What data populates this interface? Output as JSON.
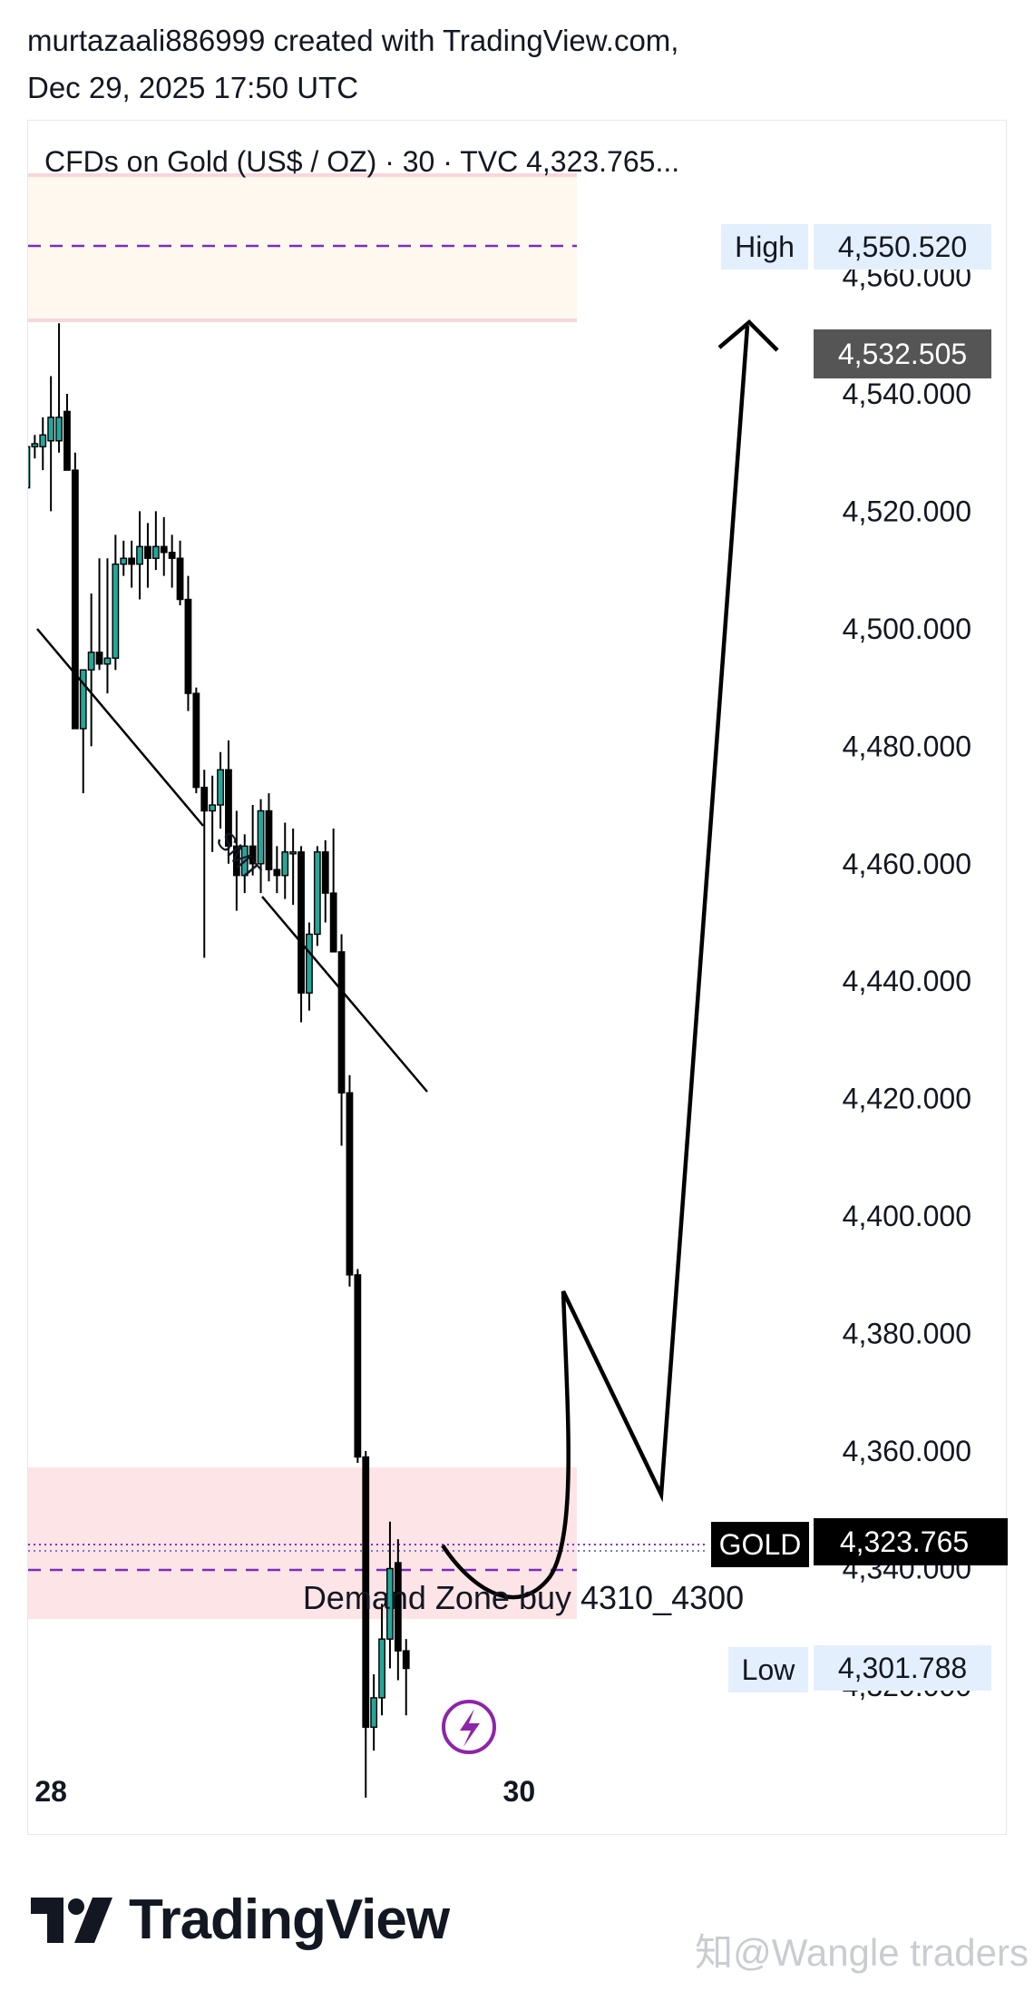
{
  "header": {
    "line1": "murtazaali886999 created with TradingView.com,",
    "line2": "Dec 29, 2025 17:50 UTC"
  },
  "symbol": {
    "legend": "CFDs on Gold (US$ / OZ) · 30 · TVC  4,323.765..."
  },
  "badges": {
    "high_label": "High",
    "high_value": "4,550.520",
    "level_value": "4,532.505",
    "gold_label": "GOLD",
    "gold_value": "4,323.765",
    "low_label": "Low",
    "low_value": "4,301.788"
  },
  "annotations": {
    "smt": "SMT",
    "demand_zone": "Demand Zone buy 4310_4300"
  },
  "footer": {
    "logo_text": "TradingView",
    "watermark": "知@Wangle traders"
  },
  "colors": {
    "bull": "#26a69a",
    "bear": "#000000",
    "dashed_line": "#7b2cbf",
    "supply_zone": "#fff8ee",
    "demand_zone": "#fde4e6"
  },
  "chart_data": {
    "type": "candlestick",
    "interval": "30",
    "y_ticks": [
      "4,560.000",
      "4,540.000",
      "4,520.000",
      "4,500.000",
      "4,480.000",
      "4,460.000",
      "4,440.000",
      "4,420.000",
      "4,400.000",
      "4,380.000",
      "4,360.000",
      "4,340.000",
      "4,320.000"
    ],
    "y_tick_values": [
      4560,
      4540,
      4520,
      4500,
      4480,
      4460,
      4440,
      4420,
      4400,
      4380,
      4360,
      4340,
      4320
    ],
    "ylim": [
      4294.5,
      4586.5
    ],
    "x_ticks": [
      {
        "label": "28",
        "index": 3
      },
      {
        "label": "30",
        "index": 61
      }
    ],
    "xlim": [
      0,
      86
    ],
    "candles": [
      {
        "o": 4524,
        "h": 4532,
        "l": 4522,
        "c": 4531
      },
      {
        "o": 4531,
        "h": 4533,
        "l": 4529,
        "c": 4531.5
      },
      {
        "o": 4531,
        "h": 4536,
        "l": 4527,
        "c": 4533
      },
      {
        "o": 4532,
        "h": 4543,
        "l": 4520,
        "c": 4536
      },
      {
        "o": 4532,
        "h": 4552,
        "l": 4530,
        "c": 4536
      },
      {
        "o": 4537,
        "h": 4540,
        "l": 4527,
        "c": 4527
      },
      {
        "o": 4527,
        "h": 4530,
        "l": 4483,
        "c": 4483
      },
      {
        "o": 4483,
        "h": 4493,
        "l": 4472,
        "c": 4493
      },
      {
        "o": 4493,
        "h": 4506,
        "l": 4480,
        "c": 4496
      },
      {
        "o": 4496,
        "h": 4512,
        "l": 4493,
        "c": 4494
      },
      {
        "o": 4494,
        "h": 4512,
        "l": 4489,
        "c": 4495
      },
      {
        "o": 4495,
        "h": 4516,
        "l": 4493,
        "c": 4511
      },
      {
        "o": 4511,
        "h": 4515,
        "l": 4509,
        "c": 4512
      },
      {
        "o": 4512,
        "h": 4515,
        "l": 4507,
        "c": 4511
      },
      {
        "o": 4511,
        "h": 4520,
        "l": 4505,
        "c": 4514
      },
      {
        "o": 4514,
        "h": 4518,
        "l": 4507,
        "c": 4512
      },
      {
        "o": 4512,
        "h": 4520,
        "l": 4510,
        "c": 4514
      },
      {
        "o": 4514,
        "h": 4519,
        "l": 4509,
        "c": 4513
      },
      {
        "o": 4513,
        "h": 4516,
        "l": 4507,
        "c": 4512
      },
      {
        "o": 4512,
        "h": 4515,
        "l": 4504,
        "c": 4505
      },
      {
        "o": 4505,
        "h": 4509,
        "l": 4486,
        "c": 4489
      },
      {
        "o": 4489,
        "h": 4490,
        "l": 4472,
        "c": 4473
      },
      {
        "o": 4473,
        "h": 4476,
        "l": 4444,
        "c": 4469
      },
      {
        "o": 4469,
        "h": 4475,
        "l": 4462,
        "c": 4470
      },
      {
        "o": 4470,
        "h": 4479,
        "l": 4466,
        "c": 4476
      },
      {
        "o": 4476,
        "h": 4481,
        "l": 4460,
        "c": 4463
      },
      {
        "o": 4463,
        "h": 4469,
        "l": 4452,
        "c": 4458
      },
      {
        "o": 4458,
        "h": 4465,
        "l": 4455,
        "c": 4463
      },
      {
        "o": 4463,
        "h": 4470,
        "l": 4458,
        "c": 4460
      },
      {
        "o": 4460,
        "h": 4471,
        "l": 4455,
        "c": 4469
      },
      {
        "o": 4469,
        "h": 4472,
        "l": 4457,
        "c": 4459
      },
      {
        "o": 4459,
        "h": 4463,
        "l": 4455,
        "c": 4458
      },
      {
        "o": 4458,
        "h": 4467,
        "l": 4454,
        "c": 4462
      },
      {
        "o": 4462,
        "h": 4466,
        "l": 4453,
        "c": 4462
      },
      {
        "o": 4462,
        "h": 4463,
        "l": 4433,
        "c": 4438
      },
      {
        "o": 4438,
        "h": 4450,
        "l": 4435,
        "c": 4448
      },
      {
        "o": 4448,
        "h": 4463,
        "l": 4446,
        "c": 4462
      },
      {
        "o": 4462,
        "h": 4464,
        "l": 4450,
        "c": 4455
      },
      {
        "o": 4455,
        "h": 4466,
        "l": 4445,
        "c": 4445
      },
      {
        "o": 4445,
        "h": 4448,
        "l": 4412,
        "c": 4421
      },
      {
        "o": 4421,
        "h": 4424,
        "l": 4388,
        "c": 4390
      },
      {
        "o": 4390,
        "h": 4391,
        "l": 4358,
        "c": 4359
      },
      {
        "o": 4359,
        "h": 4360,
        "l": 4301,
        "c": 4313
      },
      {
        "o": 4313,
        "h": 4322,
        "l": 4309,
        "c": 4318
      },
      {
        "o": 4318,
        "h": 4334,
        "l": 4315,
        "c": 4328
      },
      {
        "o": 4328,
        "h": 4348,
        "l": 4323,
        "c": 4340
      },
      {
        "o": 4341,
        "h": 4345,
        "l": 4321,
        "c": 4326
      },
      {
        "o": 4326,
        "h": 4328,
        "l": 4315,
        "c": 4323
      }
    ]
  }
}
